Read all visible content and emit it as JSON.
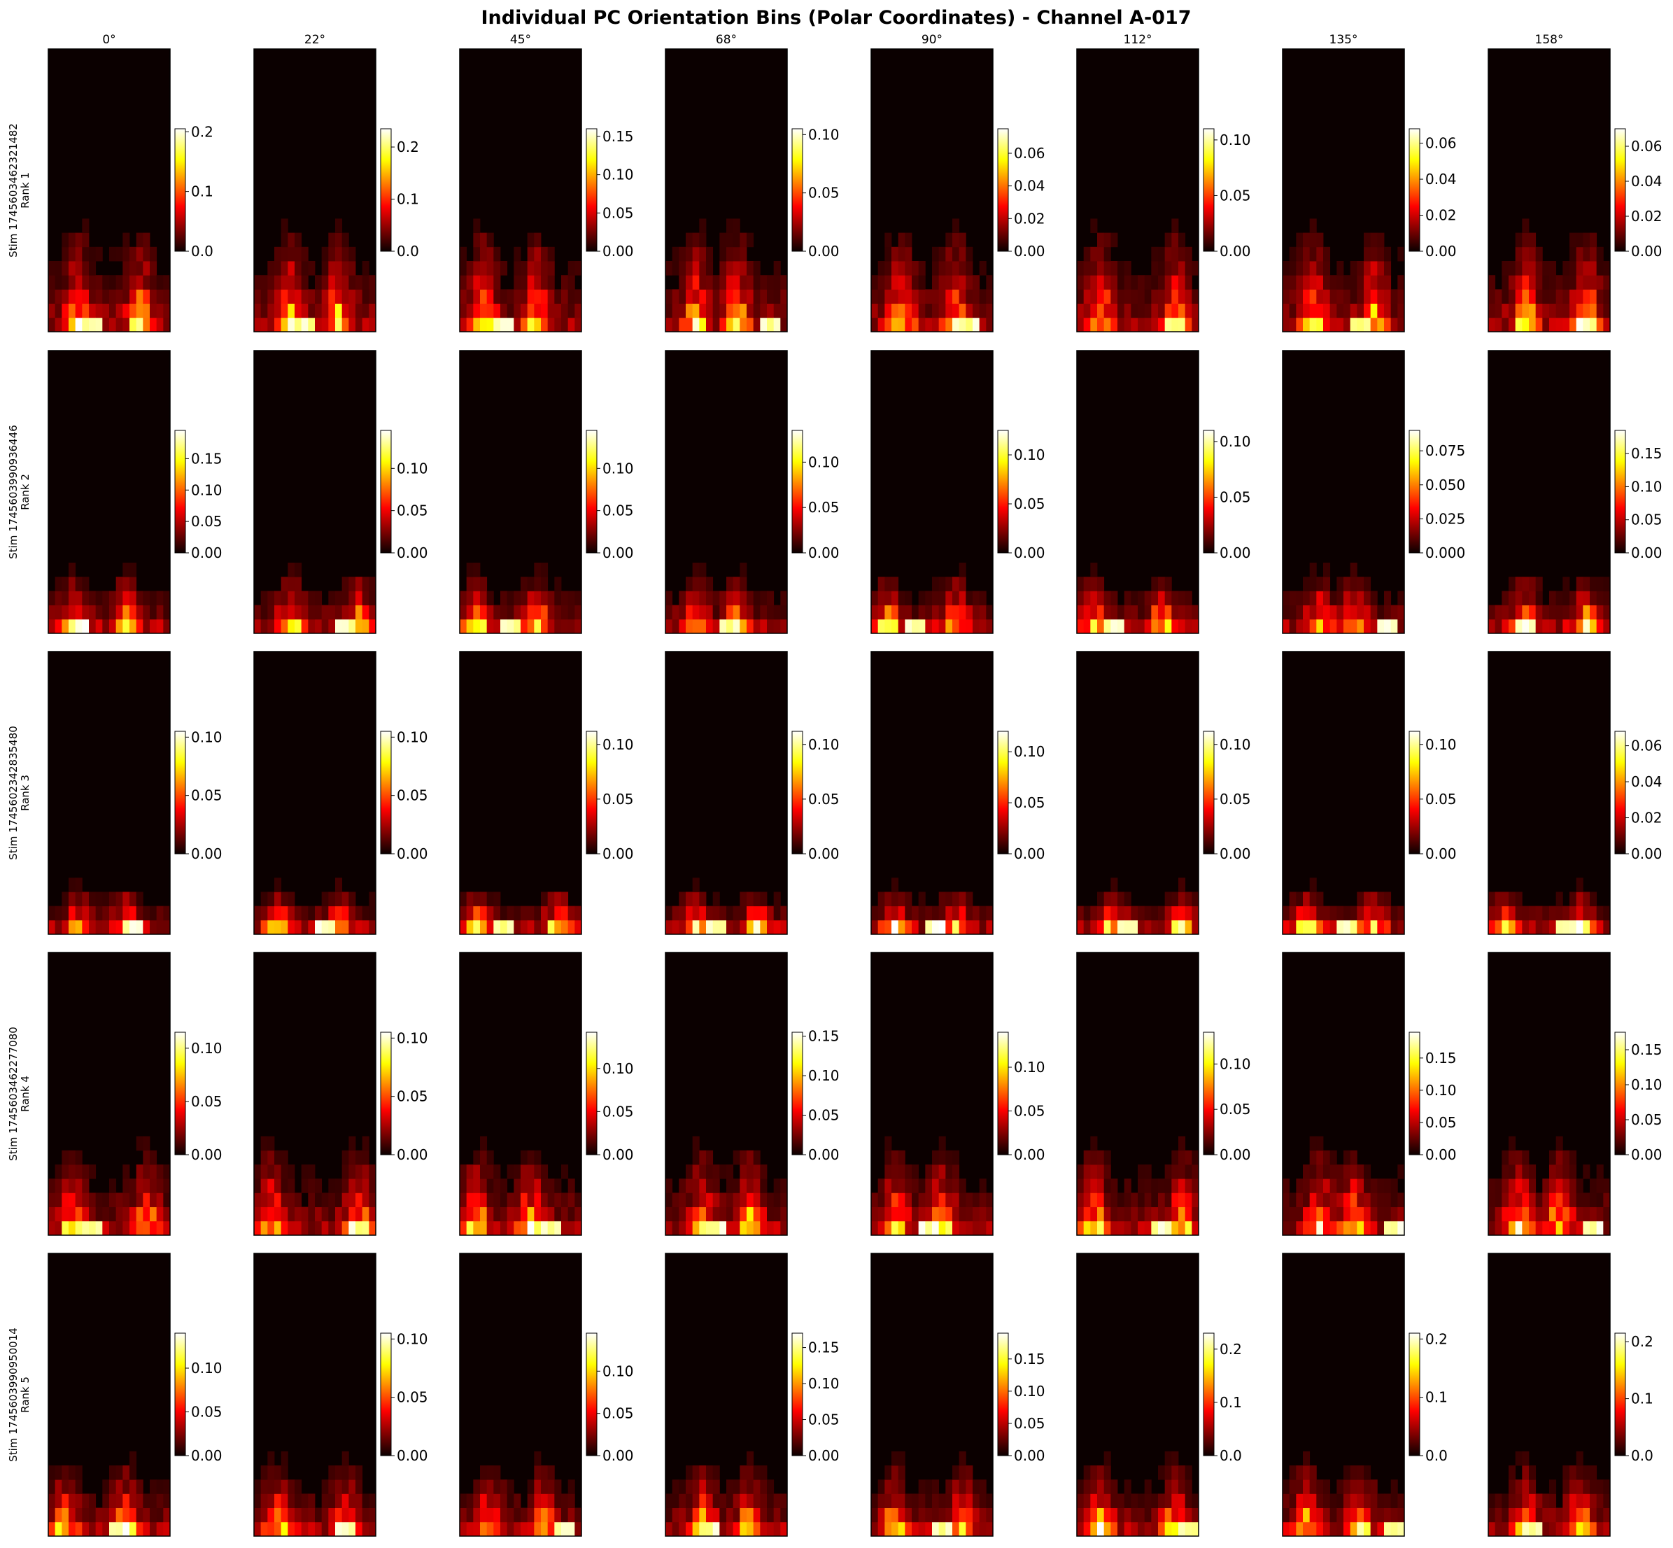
{
  "title": "Individual PC Orientation Bins (Polar Coordinates) - Channel A-017",
  "chart_data": {
    "type": "heatmap",
    "title": "Individual PC Orientation Bins (Polar Coordinates) - Channel A-017",
    "colormap": "hot",
    "columns": [
      "0°",
      "22°",
      "45°",
      "68°",
      "90°",
      "112°",
      "135°",
      "158°"
    ],
    "rows": [
      {
        "stim": "Stim 1745603462321482",
        "rank": "Rank 1"
      },
      {
        "stim": "Stim 1745603990936446",
        "rank": "Rank 2"
      },
      {
        "stim": "Stim 1745602342835480",
        "rank": "Rank 3"
      },
      {
        "stim": "Stim 1745603462277080",
        "rank": "Rank 4"
      },
      {
        "stim": "Stim 1745603990950014",
        "rank": "Rank 5"
      }
    ],
    "panel_grid": {
      "n_theta": 18,
      "n_r": 20
    },
    "colorbar_max": [
      [
        0.205,
        0.235,
        0.16,
        0.105,
        0.075,
        0.11,
        0.068,
        0.07
      ],
      [
        0.195,
        0.145,
        0.145,
        0.135,
        0.125,
        0.11,
        0.09,
        0.185
      ],
      [
        0.105,
        0.105,
        0.112,
        0.112,
        0.12,
        0.112,
        0.112,
        0.068
      ],
      [
        0.115,
        0.105,
        0.142,
        0.155,
        0.14,
        0.135,
        0.19,
        0.175
      ],
      [
        0.14,
        0.105,
        0.145,
        0.17,
        0.19,
        0.23,
        0.21,
        0.215
      ]
    ],
    "colorbar_ticks": [
      [
        [
          "0.0",
          "0.1",
          "0.2"
        ],
        [
          "0.0",
          "0.1",
          "0.2"
        ],
        [
          "0.00",
          "0.05",
          "0.10",
          "0.15"
        ],
        [
          "0.00",
          "0.05",
          "0.10"
        ],
        [
          "0.00",
          "0.02",
          "0.04",
          "0.06"
        ],
        [
          "0.00",
          "0.05",
          "0.10"
        ],
        [
          "0.00",
          "0.02",
          "0.04",
          "0.06"
        ],
        [
          "0.00",
          "0.02",
          "0.04",
          "0.06"
        ]
      ],
      [
        [
          "0.00",
          "0.05",
          "0.10",
          "0.15"
        ],
        [
          "0.00",
          "0.05",
          "0.10"
        ],
        [
          "0.00",
          "0.05",
          "0.10"
        ],
        [
          "0.00",
          "0.05",
          "0.10"
        ],
        [
          "0.00",
          "0.05",
          "0.10"
        ],
        [
          "0.00",
          "0.05",
          "0.10"
        ],
        [
          "0.000",
          "0.025",
          "0.050",
          "0.075"
        ],
        [
          "0.00",
          "0.05",
          "0.10",
          "0.15"
        ]
      ],
      [
        [
          "0.00",
          "0.05",
          "0.10"
        ],
        [
          "0.00",
          "0.05",
          "0.10"
        ],
        [
          "0.00",
          "0.05",
          "0.10"
        ],
        [
          "0.00",
          "0.05",
          "0.10"
        ],
        [
          "0.00",
          "0.05",
          "0.10"
        ],
        [
          "0.00",
          "0.05",
          "0.10"
        ],
        [
          "0.00",
          "0.05",
          "0.10"
        ],
        [
          "0.00",
          "0.02",
          "0.04",
          "0.06"
        ]
      ],
      [
        [
          "0.00",
          "0.05",
          "0.10"
        ],
        [
          "0.00",
          "0.05",
          "0.10"
        ],
        [
          "0.00",
          "0.05",
          "0.10"
        ],
        [
          "0.00",
          "0.05",
          "0.10",
          "0.15"
        ],
        [
          "0.00",
          "0.05",
          "0.10"
        ],
        [
          "0.00",
          "0.05",
          "0.10"
        ],
        [
          "0.00",
          "0.05",
          "0.10",
          "0.15"
        ],
        [
          "0.00",
          "0.05",
          "0.10",
          "0.15"
        ]
      ],
      [
        [
          "0.00",
          "0.05",
          "0.10"
        ],
        [
          "0.00",
          "0.05",
          "0.10"
        ],
        [
          "0.00",
          "0.05",
          "0.10"
        ],
        [
          "0.00",
          "0.05",
          "0.10",
          "0.15"
        ],
        [
          "0.00",
          "0.05",
          "0.10",
          "0.15"
        ],
        [
          "0.0",
          "0.1",
          "0.2"
        ],
        [
          "0.0",
          "0.1",
          "0.2"
        ],
        [
          "0.0",
          "0.1",
          "0.2"
        ]
      ]
    ],
    "heat_rows_from_bottom": [
      [
        7,
        7,
        7,
        7,
        7,
        7,
        7,
        7
      ],
      [
        4,
        4,
        4,
        4,
        4,
        4,
        4,
        4
      ],
      [
        3,
        3,
        3,
        3,
        3,
        3,
        3,
        3
      ],
      [
        6,
        6,
        6,
        6,
        6,
        6,
        6,
        6
      ],
      [
        5,
        5,
        5,
        5,
        5,
        5,
        5,
        5
      ]
    ],
    "xticks": [],
    "yticks": []
  }
}
